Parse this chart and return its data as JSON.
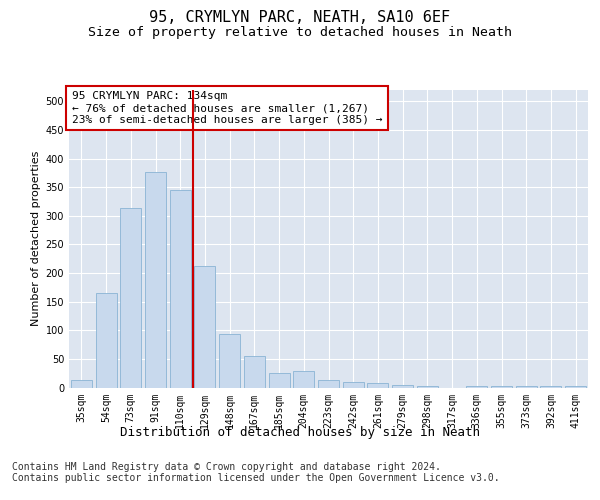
{
  "title": "95, CRYMLYN PARC, NEATH, SA10 6EF",
  "subtitle": "Size of property relative to detached houses in Neath",
  "xlabel": "Distribution of detached houses by size in Neath",
  "ylabel": "Number of detached properties",
  "categories": [
    "35sqm",
    "54sqm",
    "73sqm",
    "91sqm",
    "110sqm",
    "129sqm",
    "148sqm",
    "167sqm",
    "185sqm",
    "204sqm",
    "223sqm",
    "242sqm",
    "261sqm",
    "279sqm",
    "298sqm",
    "317sqm",
    "336sqm",
    "355sqm",
    "373sqm",
    "392sqm",
    "411sqm"
  ],
  "values": [
    13,
    165,
    314,
    377,
    345,
    213,
    93,
    55,
    25,
    28,
    13,
    10,
    8,
    5,
    2,
    0,
    2,
    2,
    2,
    2,
    2
  ],
  "bar_color": "#c8d9ed",
  "bar_edge_color": "#8ab4d4",
  "annotation_text": "95 CRYMLYN PARC: 134sqm\n← 76% of detached houses are smaller (1,267)\n23% of semi-detached houses are larger (385) →",
  "annotation_box_color": "#ffffff",
  "annotation_box_edge": "#cc0000",
  "vline_color": "#cc0000",
  "ylim": [
    0,
    520
  ],
  "yticks": [
    0,
    50,
    100,
    150,
    200,
    250,
    300,
    350,
    400,
    450,
    500
  ],
  "background_color": "#dde5f0",
  "plot_bg_color": "#dde5f0",
  "footer_text": "Contains HM Land Registry data © Crown copyright and database right 2024.\nContains public sector information licensed under the Open Government Licence v3.0.",
  "title_fontsize": 11,
  "subtitle_fontsize": 9.5,
  "xlabel_fontsize": 9,
  "ylabel_fontsize": 8,
  "footer_fontsize": 7,
  "tick_fontsize": 7,
  "annotation_fontsize": 8
}
